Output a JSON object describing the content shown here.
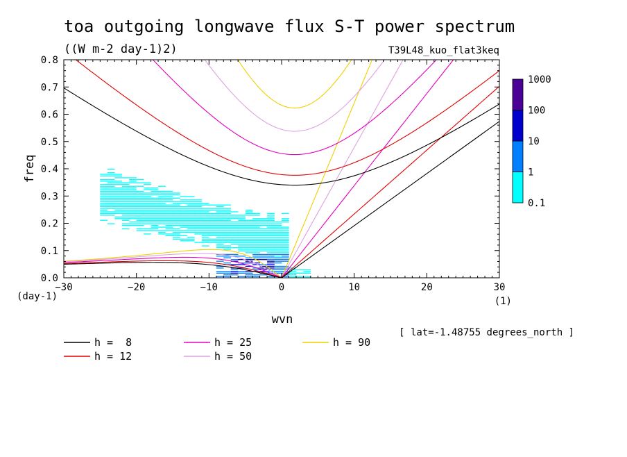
{
  "chart_data": {
    "type": "heatmap",
    "title": "toa outgoing longwave flux S-T power spectrum",
    "subtitle": "((W m-2 day-1)2)",
    "run_label": "T39L48_kuo_flat3keq",
    "xlabel": "wvn",
    "ylabel": "freq",
    "x_unit_label": "(1)",
    "y_unit_label": "(day-1)",
    "location_label": "[ lat=-1.48755 degrees_north ]",
    "xlim": [
      -30,
      30
    ],
    "ylim": [
      0,
      0.8
    ],
    "x_ticks": [
      -30,
      -20,
      -10,
      0,
      10,
      20,
      30
    ],
    "x_tick_labels": [
      "-30",
      "-20",
      "-10",
      "0",
      "10",
      "20",
      "30"
    ],
    "y_ticks": [
      0,
      0.1,
      0.2,
      0.3,
      0.4,
      0.5,
      0.6,
      0.7,
      0.8
    ],
    "y_tick_labels": [
      "0.0",
      "0.1",
      "0.2",
      "0.3",
      "0.4",
      "0.5",
      "0.6",
      "0.7",
      "0.8"
    ],
    "colorbar": {
      "levels": [
        0.1,
        1,
        10,
        100,
        1000
      ],
      "labels": [
        "0.1",
        "1",
        "10",
        "100",
        "1000"
      ],
      "colors": [
        "#00ffff",
        "#0080ff",
        "#0000cc",
        "#4b0096"
      ]
    },
    "legend": [
      {
        "label": "h =  8",
        "color": "#000000",
        "h": 8
      },
      {
        "label": "h = 12",
        "color": "#e00000",
        "h": 12
      },
      {
        "label": "h = 25",
        "color": "#e000c0",
        "h": 25
      },
      {
        "label": "h = 50",
        "color": "#e0a0e0",
        "h": 50
      },
      {
        "label": "h = 90",
        "color": "#f0d000",
        "h": 90
      }
    ],
    "dispersion_curves": [
      {
        "h": 8,
        "color": "#000000",
        "types": [
          "kelvin",
          "inertia-gravity",
          "rossby"
        ]
      },
      {
        "h": 12,
        "color": "#e00000",
        "types": [
          "kelvin",
          "inertia-gravity",
          "rossby"
        ]
      },
      {
        "h": 25,
        "color": "#e000c0",
        "types": [
          "kelvin",
          "inertia-gravity",
          "rossby"
        ]
      },
      {
        "h": 50,
        "color": "#e0a0e0",
        "types": [
          "kelvin",
          "inertia-gravity",
          "rossby"
        ]
      },
      {
        "h": 90,
        "color": "#f0d000",
        "types": [
          "kelvin",
          "inertia-gravity",
          "rossby"
        ]
      }
    ],
    "power_regions": [
      {
        "level": "0.1-1",
        "color": "#00ffff",
        "x_range": [
          -24,
          8
        ],
        "freq_range": [
          0,
          0.39
        ],
        "pattern": "westward-tilted band, wvn ~ -24 to 7, freq up to ~0.3 near wvn -15 to -10"
      },
      {
        "level": "1-10",
        "color": "#0080ff",
        "x_range": [
          -9,
          1
        ],
        "freq_range": [
          0,
          0.09
        ]
      },
      {
        "level": "10-100",
        "color": "#0000cc",
        "x_range": [
          -7,
          -1
        ],
        "freq_range": [
          0.01,
          0.07
        ]
      }
    ]
  }
}
